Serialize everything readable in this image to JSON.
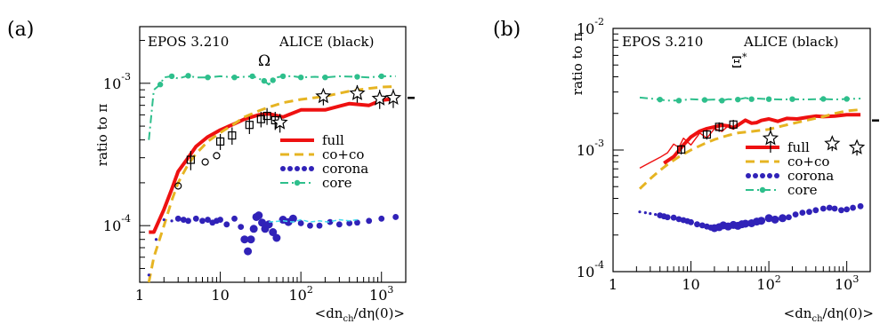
{
  "chart_data": [
    {
      "panel_label": "(a)",
      "type": "line",
      "x_scale": "log",
      "y_scale": "log",
      "xlim": [
        1,
        2000
      ],
      "ylim": [
        4e-05,
        0.0025
      ],
      "ylabel": "ratio to π",
      "xlabel_main": "<dn",
      "xlabel_sub": "ch",
      "xlabel_tail": "/dη(0)>",
      "x_ticks": [
        {
          "v": 1,
          "base": "1",
          "exp": ""
        },
        {
          "v": 10,
          "base": "10",
          "exp": ""
        },
        {
          "v": 100,
          "base": "10",
          "exp": "2"
        },
        {
          "v": 1000,
          "base": "10",
          "exp": "3"
        }
      ],
      "y_ticks": [
        {
          "v": 0.0001,
          "base": "10",
          "exp": "-4"
        },
        {
          "v": 0.001,
          "base": "10",
          "exp": "-3"
        }
      ],
      "header_left": "EPOS 3.210",
      "header_right": "ALICE (black)",
      "particle": "Ω",
      "particle_sup": "",
      "legend": [
        {
          "label": "full",
          "style": "full"
        },
        {
          "label": "co+co",
          "style": "coco"
        },
        {
          "label": "corona",
          "style": "corona"
        },
        {
          "label": "core",
          "style": "core"
        }
      ],
      "series": [
        {
          "name": "full",
          "style": "full",
          "x": [
            1.3,
            1.5,
            2,
            2.5,
            3,
            4,
            5,
            7,
            10,
            15,
            20,
            30,
            40,
            60,
            100,
            200,
            400,
            700,
            1000,
            1500
          ],
          "y": [
            9e-05,
            9e-05,
            0.00013,
            0.00018,
            0.00024,
            0.0003,
            0.00036,
            0.00042,
            0.00047,
            0.00052,
            0.00056,
            0.0006,
            0.00061,
            0.00058,
            0.00065,
            0.00065,
            0.00072,
            0.0007,
            0.00076,
            0.00078
          ]
        },
        {
          "name": "co+co",
          "style": "coco",
          "x": [
            1.3,
            1.5,
            2,
            2.5,
            3,
            4,
            5,
            7,
            10,
            15,
            20,
            30,
            40,
            60,
            100,
            200,
            400,
            700,
            1000,
            1500
          ],
          "y": [
            4e-05,
            6e-05,
            0.0001,
            0.00015,
            0.0002,
            0.00027,
            0.00032,
            0.00039,
            0.00045,
            0.00052,
            0.00058,
            0.00064,
            0.00068,
            0.00073,
            0.00077,
            0.00081,
            0.00088,
            0.00092,
            0.00094,
            0.00095
          ]
        },
        {
          "name": "corona",
          "style": "corona",
          "x": [
            1.3,
            1.6,
            2,
            2.5,
            3,
            3.5,
            4,
            5,
            6,
            7,
            8,
            9,
            10,
            12,
            15,
            18,
            20,
            22,
            24,
            26,
            28,
            30,
            33,
            36,
            40,
            45,
            50,
            60,
            70,
            80,
            100,
            130,
            170,
            230,
            300,
            400,
            500,
            700,
            1000,
            1500
          ],
          "y": [
            4.5e-05,
            8e-05,
            0.00011,
            0.000108,
            0.000112,
            0.00011,
            0.000108,
            0.000112,
            0.000108,
            0.00011,
            0.000105,
            0.000108,
            0.00011,
            0.000102,
            0.000112,
            9.8e-05,
            8e-05,
            6.6e-05,
            8e-05,
            9.5e-05,
            0.000115,
            0.000118,
            0.000105,
            9.5e-05,
            0.000102,
            9e-05,
            8.2e-05,
            0.00011,
            0.000106,
            0.000112,
            0.000104,
            0.0001,
            0.0001,
            0.000106,
            0.000102,
            0.000104,
            0.000105,
            0.000108,
            0.000112,
            0.000115
          ]
        },
        {
          "name": "core",
          "style": "core",
          "x": [
            1.3,
            1.5,
            1.8,
            2,
            2.5,
            3,
            4,
            5,
            7,
            10,
            15,
            20,
            25,
            30,
            35,
            40,
            45,
            50,
            60,
            80,
            100,
            150,
            200,
            300,
            500,
            700,
            1000,
            1500
          ],
          "y": [
            0.0004,
            0.0009,
            0.00098,
            0.0011,
            0.00112,
            0.00108,
            0.00113,
            0.0011,
            0.0011,
            0.00112,
            0.0011,
            0.00111,
            0.00112,
            0.00108,
            0.00104,
            0.00098,
            0.00105,
            0.0011,
            0.00112,
            0.00112,
            0.0011,
            0.00111,
            0.0011,
            0.00112,
            0.00111,
            0.0011,
            0.00112,
            0.00112
          ]
        },
        {
          "name": "",
          "style": "cyan",
          "x": [
            40,
            60,
            80,
            100,
            130,
            170,
            220,
            300,
            400,
            500
          ],
          "y": [
            0.000106,
            0.000108,
            0.000106,
            0.00011,
            0.000106,
            0.000108,
            0.000106,
            0.00011,
            0.000108,
            0.00011
          ]
        }
      ],
      "data_points": [
        {
          "x": 3,
          "y": 0.00019,
          "m": "circle"
        },
        {
          "x": 4.3,
          "y": 0.00029,
          "m": "square",
          "err": 4.5e-05
        },
        {
          "x": 6.5,
          "y": 0.00028,
          "m": "circle"
        },
        {
          "x": 9,
          "y": 0.00031,
          "m": "circle"
        },
        {
          "x": 10,
          "y": 0.00039,
          "m": "square",
          "err": 5e-05
        },
        {
          "x": 14,
          "y": 0.00043,
          "m": "square",
          "err": 6e-05
        },
        {
          "x": 23,
          "y": 0.00051,
          "m": "square",
          "err": 7e-05
        },
        {
          "x": 32,
          "y": 0.00056,
          "m": "square",
          "err": 7e-05
        },
        {
          "x": 38,
          "y": 0.00059,
          "m": "square",
          "err": 8e-05
        },
        {
          "x": 48,
          "y": 0.00055,
          "m": "square",
          "err": 8e-05
        },
        {
          "x": 55,
          "y": 0.00053,
          "m": "star",
          "err": 8e-05
        },
        {
          "x": 190,
          "y": 0.00081,
          "m": "star",
          "err": 0.00011
        },
        {
          "x": 500,
          "y": 0.00085,
          "m": "star",
          "err": 0.00012
        },
        {
          "x": 950,
          "y": 0.00078,
          "m": "star",
          "err": 0.00012
        },
        {
          "x": 1400,
          "y": 0.00079,
          "m": "star",
          "err": 0.00012
        }
      ]
    },
    {
      "panel_label": "(b)",
      "type": "line",
      "x_scale": "log",
      "y_scale": "log",
      "xlim": [
        1,
        2000
      ],
      "ylim": [
        0.0001,
        0.01
      ],
      "ylabel": "ratio to π",
      "xlabel_main": "<dn",
      "xlabel_sub": "ch",
      "xlabel_tail": "/dη(0)>",
      "x_ticks": [
        {
          "v": 1,
          "base": "1",
          "exp": ""
        },
        {
          "v": 10,
          "base": "10",
          "exp": ""
        },
        {
          "v": 100,
          "base": "10",
          "exp": "2"
        },
        {
          "v": 1000,
          "base": "10",
          "exp": "3"
        }
      ],
      "y_ticks": [
        {
          "v": 0.0001,
          "base": "10",
          "exp": "-4"
        },
        {
          "v": 0.001,
          "base": "10",
          "exp": "-3"
        },
        {
          "v": 0.01,
          "base": "10",
          "exp": "-2"
        }
      ],
      "header_left": "EPOS 3.210",
      "header_right": "ALICE (black)",
      "particle": "Ξ",
      "particle_sup": "*",
      "legend": [
        {
          "label": "full",
          "style": "full"
        },
        {
          "label": "co+co",
          "style": "coco"
        },
        {
          "label": "corona",
          "style": "corona"
        },
        {
          "label": "core",
          "style": "core"
        }
      ],
      "series": [
        {
          "name": "full",
          "style": "full",
          "x": [
            4.5,
            6,
            8,
            10,
            13,
            16,
            20,
            25,
            30,
            35,
            40,
            50,
            60,
            70,
            80,
            100,
            130,
            170,
            230,
            300,
            400,
            500,
            700,
            1000,
            1500
          ],
          "y": [
            0.00078,
            0.00088,
            0.0011,
            0.00128,
            0.00143,
            0.0015,
            0.00155,
            0.0016,
            0.00158,
            0.00152,
            0.0016,
            0.00176,
            0.00166,
            0.00168,
            0.00175,
            0.0018,
            0.00172,
            0.00182,
            0.0018,
            0.00185,
            0.0019,
            0.00188,
            0.0019,
            0.00195,
            0.00195
          ]
        },
        {
          "name": "",
          "style": "full-thin",
          "x": [
            2.2,
            3,
            4,
            5,
            6,
            7,
            8,
            10,
            13,
            16,
            20,
            25,
            30
          ],
          "y": [
            0.00071,
            0.00079,
            0.00087,
            0.00095,
            0.00112,
            0.00105,
            0.00125,
            0.0011,
            0.00138,
            0.00125,
            0.0015,
            0.00142,
            0.00158
          ]
        },
        {
          "name": "co+co",
          "style": "coco",
          "x": [
            2.2,
            3,
            4,
            5,
            7,
            10,
            15,
            20,
            30,
            40,
            60,
            100,
            150,
            200,
            300,
            500,
            700,
            1000,
            1500
          ],
          "y": [
            0.00048,
            0.00058,
            0.00068,
            0.00076,
            0.00088,
            0.001,
            0.00113,
            0.00122,
            0.00132,
            0.00138,
            0.00142,
            0.00148,
            0.00158,
            0.00165,
            0.00175,
            0.00188,
            0.002,
            0.0021,
            0.00215
          ]
        },
        {
          "name": "corona",
          "style": "corona",
          "x": [
            2.2,
            2.6,
            3,
            3.5,
            4,
            4.5,
            5,
            6,
            7,
            8,
            9,
            10,
            12,
            14,
            16,
            18,
            20,
            23,
            26,
            30,
            35,
            40,
            45,
            50,
            60,
            70,
            80,
            100,
            120,
            150,
            180,
            220,
            270,
            330,
            400,
            500,
            600,
            700,
            850,
            1000,
            1200,
            1500
          ],
          "y": [
            0.00031,
            0.000305,
            0.0003,
            0.000295,
            0.00029,
            0.000285,
            0.00028,
            0.000278,
            0.00027,
            0.000265,
            0.00026,
            0.000255,
            0.000245,
            0.00024,
            0.000235,
            0.00023,
            0.000228,
            0.000232,
            0.00024,
            0.000235,
            0.000242,
            0.000238,
            0.000245,
            0.000248,
            0.00025,
            0.000258,
            0.000262,
            0.000275,
            0.000268,
            0.000275,
            0.00028,
            0.000295,
            0.000305,
            0.00031,
            0.00032,
            0.00033,
            0.000335,
            0.00033,
            0.00032,
            0.000325,
            0.000335,
            0.000345
          ]
        },
        {
          "name": "core",
          "style": "core",
          "x": [
            2.2,
            3,
            4,
            5,
            7,
            10,
            15,
            20,
            25,
            30,
            40,
            50,
            60,
            70,
            100,
            150,
            200,
            300,
            500,
            700,
            1000,
            1500
          ],
          "y": [
            0.0027,
            0.00265,
            0.0026,
            0.00255,
            0.00255,
            0.00262,
            0.00258,
            0.0026,
            0.00255,
            0.00262,
            0.0026,
            0.00268,
            0.00262,
            0.00265,
            0.00262,
            0.0026,
            0.00262,
            0.0026,
            0.00263,
            0.0026,
            0.00263,
            0.00265
          ]
        }
      ],
      "data_points": [
        {
          "x": 7.5,
          "y": 0.00101,
          "m": "square",
          "err": 9e-05
        },
        {
          "x": 16,
          "y": 0.00134,
          "m": "square",
          "err": 0.00012
        },
        {
          "x": 23,
          "y": 0.00155,
          "m": "square",
          "err": 0.00014
        },
        {
          "x": 35,
          "y": 0.00162,
          "m": "square",
          "err": 0.00015
        },
        {
          "x": 105,
          "y": 0.00125,
          "m": "star",
          "err": 0.0003
        },
        {
          "x": 650,
          "y": 0.00113,
          "m": "star",
          "err": 0.00015
        },
        {
          "x": 1350,
          "y": 0.00105,
          "m": "star",
          "err": 0.00015
        }
      ]
    }
  ],
  "colors": {
    "full": "#ee1111",
    "coco": "#e6b422",
    "corona": "#3022b8",
    "core": "#2ebf8c",
    "cyan": "#44ddee"
  }
}
